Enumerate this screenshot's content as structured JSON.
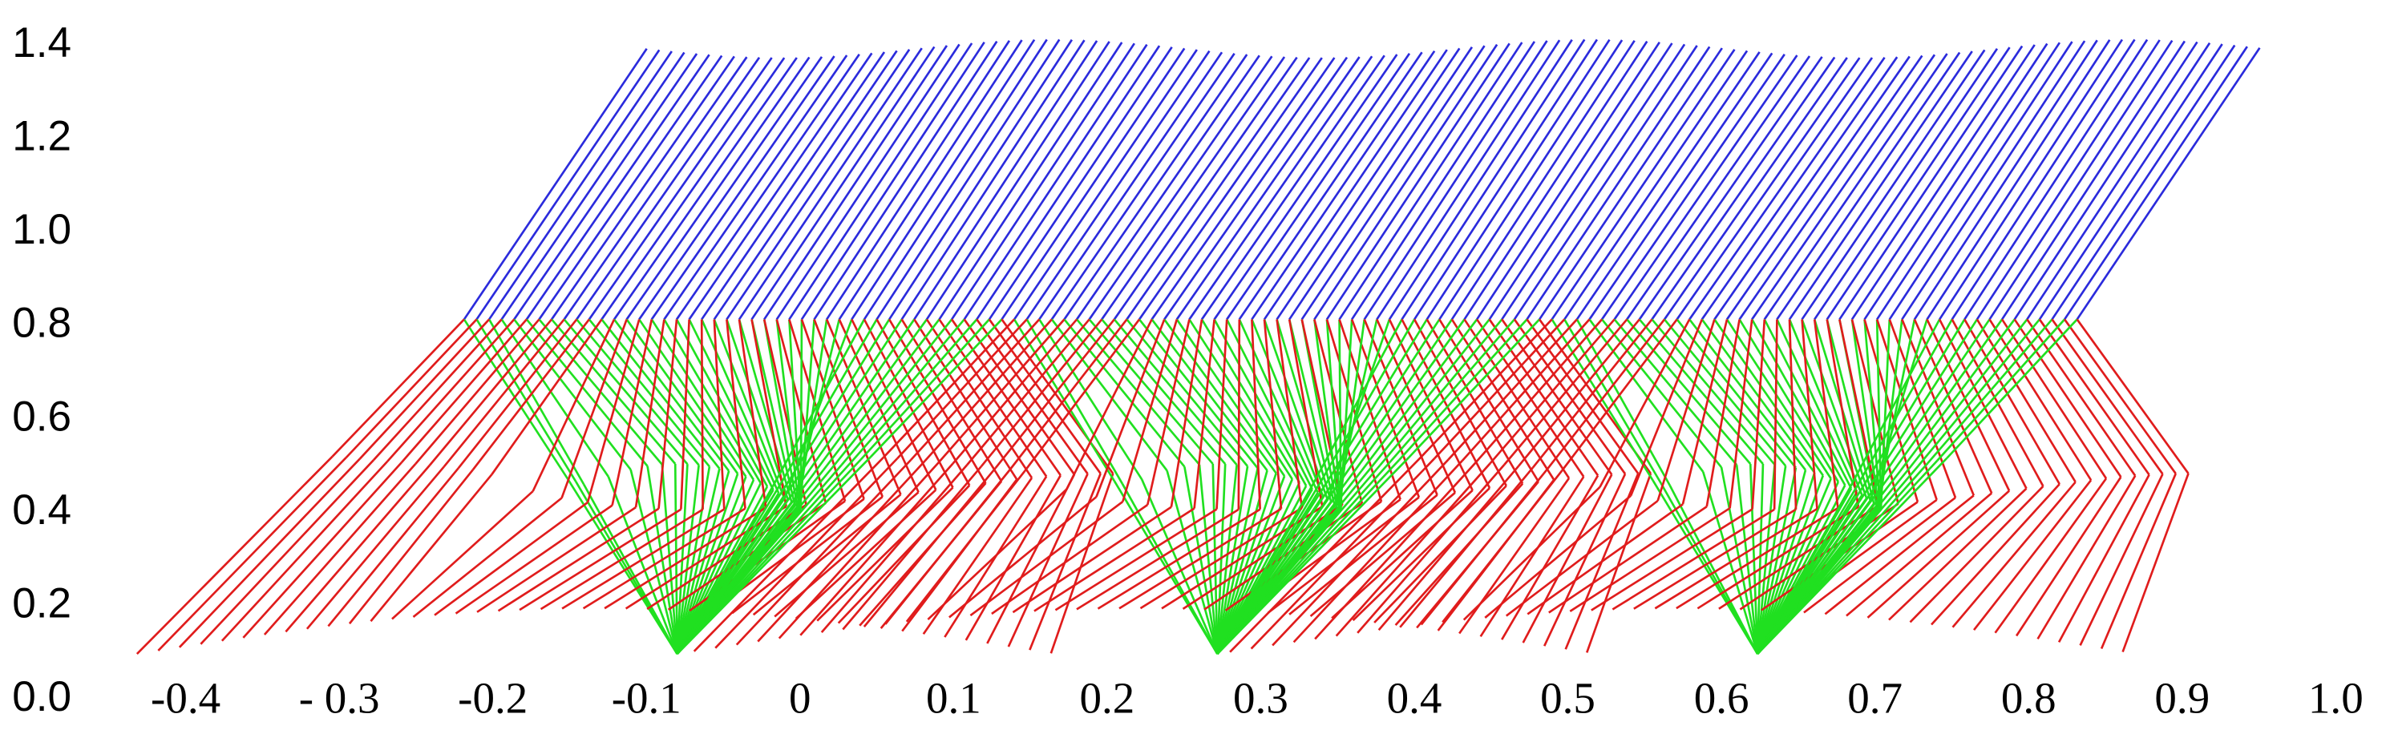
{
  "chart_data": {
    "type": "stick-diagram",
    "xlim": [
      -0.4,
      1.0
    ],
    "ylim": [
      0,
      1.4
    ],
    "xticks": [
      -0.4,
      {
        "value": -0.3,
        "label": "- 0.3"
      },
      -0.2,
      -0.1,
      0,
      0.1,
      0.2,
      0.3,
      0.4,
      0.5,
      0.6,
      0.7,
      0.8,
      0.9,
      {
        "value": 1,
        "label": "1.0"
      }
    ],
    "yticks": [
      {
        "value": 0,
        "label": "0.0"
      },
      0.2,
      0.4,
      0.6,
      0.8,
      {
        "value": 1,
        "label": "1.0"
      },
      1.2,
      1.4
    ]
  }
}
